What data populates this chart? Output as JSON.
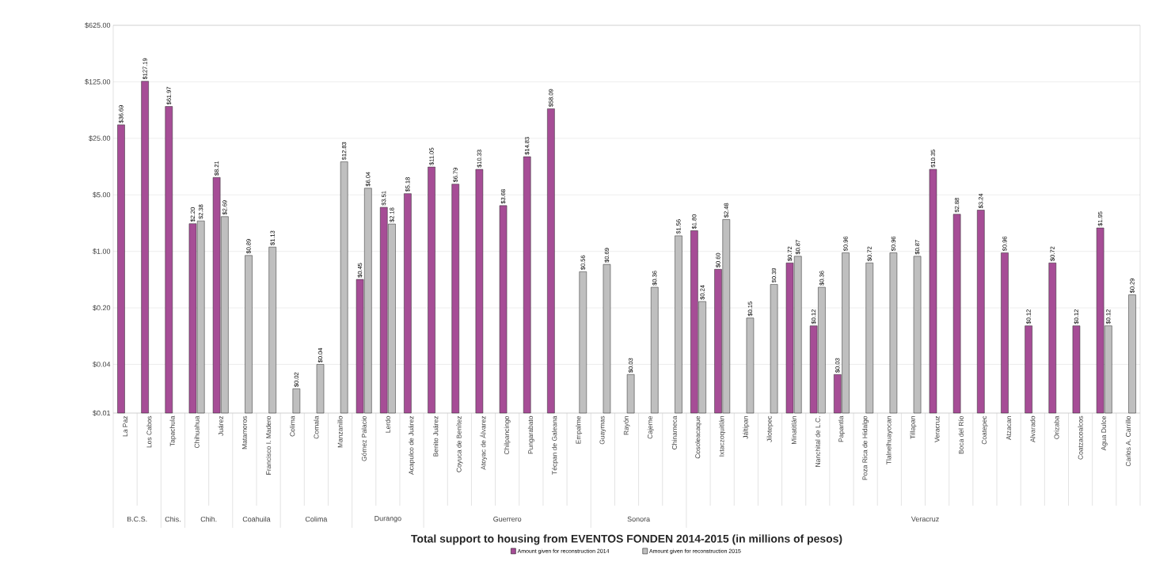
{
  "chart_data": {
    "type": "bar",
    "title": "Total support to housing from EVENTOS FONDEN 2014-2015 (in millions of pesos)",
    "categories": [
      "La Paz",
      "Los Cabos",
      "Tapachula",
      "Chihuahua",
      "Juárez",
      "Matamoros",
      "Francisco I. Madero",
      "Colima",
      "Comala",
      "Manzanillo",
      "Gómez Palacio",
      "Lerdo",
      "Acapulco de Juárez",
      "Benito Juárez",
      "Coyuca de Benítez",
      "Atoyac de Álvarez",
      "Chilpancingo",
      "Pungarabato",
      "Técpan de Galeana",
      "Empalme",
      "Guaymas",
      "Rayón",
      "Cajeme",
      "Chinameca",
      "Cosoleacaque",
      "Ixtaczoquitlán",
      "Jáltipan",
      "Jilotepec",
      "Minatitlán",
      "Nanchital de L.C.",
      "Papantla",
      "Poza Rica de Hidalgo",
      "Tlalnelhuayocan",
      "Tillapan",
      "Veracruz",
      "Boca del Río",
      "Coatepec",
      "Atzacan",
      "Alvarado",
      "Orizaba",
      "Coatzacoalcos",
      "Agua Dulce",
      "Carlos A. Carrillo"
    ],
    "series": [
      {
        "name": "Amount given for reconstruction 2014",
        "color": "#a64d96",
        "values": [
          36.69,
          127.19,
          61.97,
          2.2,
          8.21,
          null,
          null,
          null,
          null,
          null,
          0.45,
          3.51,
          5.18,
          11.05,
          6.79,
          10.33,
          3.68,
          14.83,
          58.09,
          null,
          null,
          null,
          null,
          null,
          1.8,
          0.6,
          null,
          null,
          0.72,
          0.12,
          0.03,
          null,
          null,
          null,
          10.35,
          2.88,
          3.24,
          0.96,
          0.12,
          0.72,
          0.12,
          1.95,
          null
        ],
        "value_labels": [
          "$36.69",
          "$127.19",
          "$61.97",
          "$2.20",
          "$8.21",
          null,
          null,
          null,
          null,
          null,
          "$0.45",
          "$3.51",
          "$5.18",
          "$11.05",
          "$6.79",
          "$10.33",
          "$3.68",
          "$14.83",
          "$58.09",
          null,
          null,
          null,
          null,
          null,
          "$1.80",
          "$0.60",
          null,
          null,
          "$0.72",
          "$0.12",
          "$0.03",
          null,
          null,
          null,
          "$10.35",
          "$2.88",
          "$3.24",
          "$0.96",
          "$0.12",
          "$0.72",
          "$0.12",
          "$1.95",
          null
        ]
      },
      {
        "name": "Amount given for reconstruction 2015",
        "color": "#bfbfbf",
        "values": [
          null,
          null,
          null,
          2.38,
          2.69,
          0.89,
          1.13,
          0.02,
          0.04,
          12.83,
          6.04,
          2.18,
          null,
          null,
          null,
          null,
          null,
          null,
          null,
          0.56,
          0.69,
          0.03,
          0.36,
          1.56,
          0.24,
          2.48,
          0.15,
          0.39,
          0.87,
          0.36,
          0.96,
          0.72,
          0.96,
          0.87,
          null,
          null,
          null,
          null,
          null,
          null,
          null,
          0.12,
          0.29
        ],
        "value_labels": [
          null,
          null,
          null,
          "$2.38",
          "$2.69",
          "$0.89",
          "$1.13",
          "$0.02",
          "$0.04",
          "$12.83",
          "$6.04",
          "$2.18",
          null,
          null,
          null,
          null,
          null,
          null,
          null,
          "$0.56",
          "$0.69",
          "$0.03",
          "$0.36",
          "$1.56",
          "$0.24",
          "$2.48",
          "$0.15",
          "$0.39",
          "$0.87",
          "$0.36",
          "$0.96",
          "$0.72",
          "$0.96",
          "$0.87",
          null,
          null,
          null,
          null,
          null,
          null,
          null,
          "$0.12",
          "$0.29"
        ]
      }
    ],
    "log": "y",
    "ylim": [
      0.01,
      625
    ],
    "yticks": [
      {
        "value": 0.01,
        "label": "$0.01"
      },
      {
        "value": 0.04,
        "label": "$0.04"
      },
      {
        "value": 0.2,
        "label": "$0.20"
      },
      {
        "value": 1,
        "label": "$1.00"
      },
      {
        "value": 5,
        "label": "$5.00"
      },
      {
        "value": 25,
        "label": "$25.00"
      },
      {
        "value": 125,
        "label": "$125.00"
      },
      {
        "value": 625,
        "label": "$625.00"
      }
    ],
    "grid": "y",
    "legend": "bottom",
    "annotations": [
      "B.C.S.",
      "Chis.",
      "Chih.",
      "Coahuila",
      "Colima",
      "Durango",
      "Guerrero",
      "Sonora",
      "Veracruz"
    ]
  }
}
